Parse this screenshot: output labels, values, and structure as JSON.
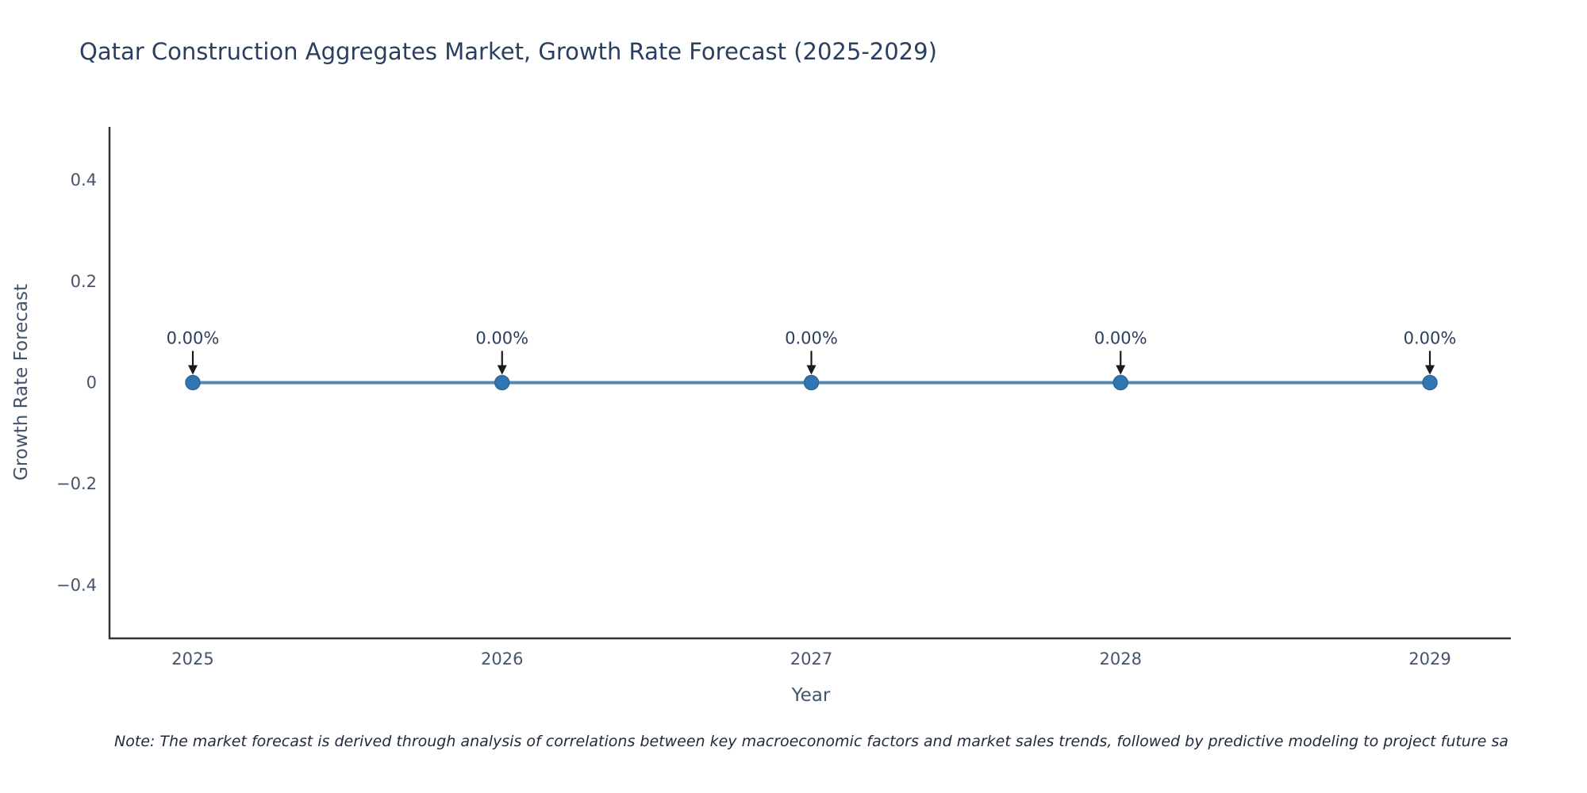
{
  "title": "Qatar Construction Aggregates Market, Growth Rate Forecast (2025-2029)",
  "note": "Note: The market forecast is derived through analysis of correlations between key macroeconomic factors and market sales trends, followed by predictive modeling to project future sa",
  "chart_data": {
    "type": "line",
    "title": "Qatar Construction Aggregates Market, Growth Rate Forecast (2025-2029)",
    "xlabel": "Year",
    "ylabel": "Growth Rate Forecast",
    "x": [
      2025,
      2026,
      2027,
      2028,
      2029
    ],
    "categories": [
      "2025",
      "2026",
      "2027",
      "2028",
      "2029"
    ],
    "series": [
      {
        "name": "Growth Rate Forecast",
        "values": [
          0,
          0,
          0,
          0,
          0
        ]
      }
    ],
    "point_labels": [
      "0.00%",
      "0.00%",
      "0.00%",
      "0.00%",
      "0.00%"
    ],
    "ylim": [
      -0.505,
      0.505
    ],
    "yticks": [
      0.4,
      0.2,
      0,
      -0.2,
      -0.4
    ],
    "ytick_labels": [
      "0.4",
      "0.2",
      "0",
      "−0.2",
      "−0.4"
    ],
    "xtick_labels": [
      "2025",
      "2026",
      "2027",
      "2028",
      "2029"
    ],
    "grid": false,
    "legend_position": "none",
    "colors": {
      "line": "#5389b5",
      "marker_fill": "#3276b1",
      "marker_stroke": "#2b6699",
      "axis": "#363636",
      "tick_text": "#45556b",
      "annotation_text": "#2a3f5f",
      "arrow": "#1a1a1a",
      "title_text": "#2a3f5f"
    }
  }
}
